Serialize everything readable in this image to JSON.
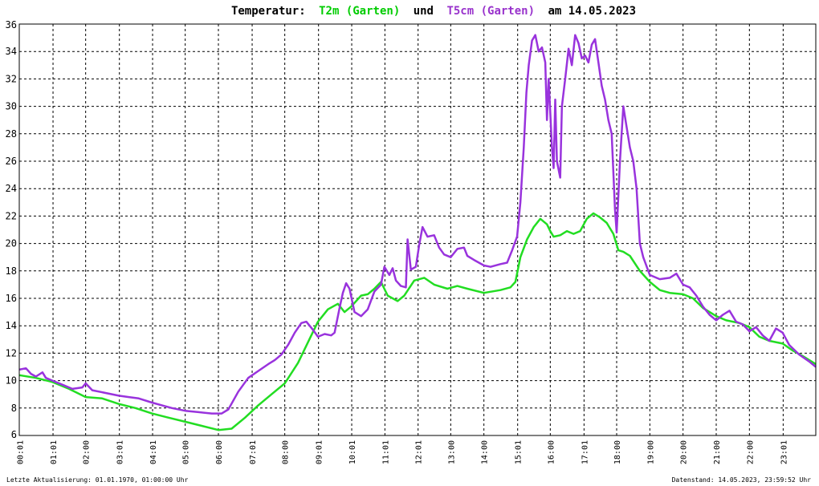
{
  "title": {
    "prefix": "Temperatur:",
    "series1": "T2m (Garten)",
    "connector": "und",
    "series2": "T5cm (Garten)",
    "suffix": "am 14.05.2023"
  },
  "footer": {
    "left": "Letzte Aktualisierung: 01.01.1970, 01:00:00 Uhr",
    "right": "Datenstand: 14.05.2023, 23:59:52 Uhr"
  },
  "colors": {
    "t2m": "#22dd22",
    "t5cm": "#9933dd",
    "grid": "#000000",
    "title_t2m": "#00cc00",
    "title_t5cm": "#9933cc"
  },
  "chart_data": {
    "type": "line",
    "xlim": [
      0,
      24
    ],
    "ylim": [
      6,
      36
    ],
    "y_ticks": [
      6,
      8,
      10,
      12,
      14,
      16,
      18,
      20,
      22,
      24,
      26,
      28,
      30,
      32,
      34,
      36
    ],
    "x_ticks": [
      {
        "label": "00:01",
        "x": 0.017
      },
      {
        "label": "01:01",
        "x": 1.017
      },
      {
        "label": "02:00",
        "x": 2.0
      },
      {
        "label": "03:01",
        "x": 3.017
      },
      {
        "label": "04:01",
        "x": 4.017
      },
      {
        "label": "05:00",
        "x": 5.0
      },
      {
        "label": "06:00",
        "x": 6.0
      },
      {
        "label": "07:01",
        "x": 7.017
      },
      {
        "label": "08:00",
        "x": 8.0
      },
      {
        "label": "09:01",
        "x": 9.017
      },
      {
        "label": "10:01",
        "x": 10.017
      },
      {
        "label": "11:01",
        "x": 11.017
      },
      {
        "label": "12:01",
        "x": 12.017
      },
      {
        "label": "13:00",
        "x": 13.0
      },
      {
        "label": "14:00",
        "x": 14.0
      },
      {
        "label": "15:01",
        "x": 15.017
      },
      {
        "label": "16:00",
        "x": 16.0
      },
      {
        "label": "17:01",
        "x": 17.017
      },
      {
        "label": "18:00",
        "x": 18.0
      },
      {
        "label": "19:00",
        "x": 19.0
      },
      {
        "label": "20:00",
        "x": 20.0
      },
      {
        "label": "21:00",
        "x": 21.0
      },
      {
        "label": "22:00",
        "x": 22.0
      },
      {
        "label": "23:01",
        "x": 23.017
      }
    ],
    "grid": true,
    "series": [
      {
        "name": "T2m (Garten)",
        "color": "#22dd22",
        "points": [
          [
            0.0,
            10.4
          ],
          [
            0.5,
            10.2
          ],
          [
            1.0,
            9.9
          ],
          [
            1.5,
            9.4
          ],
          [
            2.0,
            8.8
          ],
          [
            2.5,
            8.7
          ],
          [
            3.0,
            8.3
          ],
          [
            3.5,
            8.0
          ],
          [
            4.0,
            7.6
          ],
          [
            4.5,
            7.3
          ],
          [
            5.0,
            7.0
          ],
          [
            5.5,
            6.7
          ],
          [
            6.0,
            6.4
          ],
          [
            6.4,
            6.5
          ],
          [
            6.8,
            7.3
          ],
          [
            7.2,
            8.2
          ],
          [
            7.6,
            9.0
          ],
          [
            8.0,
            9.8
          ],
          [
            8.4,
            11.3
          ],
          [
            8.7,
            12.8
          ],
          [
            9.0,
            14.3
          ],
          [
            9.3,
            15.2
          ],
          [
            9.6,
            15.6
          ],
          [
            9.8,
            15.0
          ],
          [
            10.0,
            15.4
          ],
          [
            10.3,
            16.2
          ],
          [
            10.5,
            16.3
          ],
          [
            10.7,
            16.7
          ],
          [
            10.9,
            17.2
          ],
          [
            11.1,
            16.2
          ],
          [
            11.4,
            15.8
          ],
          [
            11.6,
            16.2
          ],
          [
            11.9,
            17.3
          ],
          [
            12.2,
            17.5
          ],
          [
            12.5,
            17.0
          ],
          [
            12.9,
            16.7
          ],
          [
            13.2,
            16.9
          ],
          [
            13.5,
            16.7
          ],
          [
            14.0,
            16.4
          ],
          [
            14.5,
            16.6
          ],
          [
            14.8,
            16.8
          ],
          [
            14.95,
            17.2
          ],
          [
            15.1,
            19.0
          ],
          [
            15.3,
            20.3
          ],
          [
            15.5,
            21.2
          ],
          [
            15.7,
            21.8
          ],
          [
            15.9,
            21.4
          ],
          [
            16.0,
            20.9
          ],
          [
            16.1,
            20.5
          ],
          [
            16.3,
            20.6
          ],
          [
            16.5,
            20.9
          ],
          [
            16.7,
            20.7
          ],
          [
            16.9,
            20.9
          ],
          [
            17.1,
            21.8
          ],
          [
            17.3,
            22.2
          ],
          [
            17.5,
            21.9
          ],
          [
            17.7,
            21.5
          ],
          [
            17.9,
            20.7
          ],
          [
            18.05,
            19.5
          ],
          [
            18.2,
            19.4
          ],
          [
            18.4,
            19.1
          ],
          [
            18.7,
            18.0
          ],
          [
            19.0,
            17.2
          ],
          [
            19.3,
            16.6
          ],
          [
            19.6,
            16.4
          ],
          [
            20.0,
            16.3
          ],
          [
            20.3,
            16.0
          ],
          [
            20.6,
            15.3
          ],
          [
            21.0,
            14.7
          ],
          [
            21.3,
            14.4
          ],
          [
            21.7,
            14.2
          ],
          [
            22.0,
            13.9
          ],
          [
            22.3,
            13.2
          ],
          [
            22.6,
            12.9
          ],
          [
            23.0,
            12.7
          ],
          [
            23.3,
            12.2
          ],
          [
            23.6,
            11.8
          ],
          [
            24.0,
            11.2
          ]
        ]
      },
      {
        "name": "T5cm (Garten)",
        "color": "#9933dd",
        "points": [
          [
            0.0,
            10.8
          ],
          [
            0.2,
            10.9
          ],
          [
            0.35,
            10.5
          ],
          [
            0.5,
            10.3
          ],
          [
            0.7,
            10.6
          ],
          [
            0.8,
            10.2
          ],
          [
            1.0,
            10.0
          ],
          [
            1.3,
            9.7
          ],
          [
            1.6,
            9.4
          ],
          [
            1.9,
            9.5
          ],
          [
            2.0,
            9.8
          ],
          [
            2.2,
            9.3
          ],
          [
            2.6,
            9.1
          ],
          [
            3.0,
            8.9
          ],
          [
            3.3,
            8.8
          ],
          [
            3.6,
            8.7
          ],
          [
            4.0,
            8.4
          ],
          [
            4.3,
            8.2
          ],
          [
            4.6,
            8.0
          ],
          [
            5.0,
            7.8
          ],
          [
            5.4,
            7.7
          ],
          [
            5.8,
            7.6
          ],
          [
            6.1,
            7.6
          ],
          [
            6.3,
            7.9
          ],
          [
            6.6,
            9.2
          ],
          [
            6.9,
            10.2
          ],
          [
            7.2,
            10.7
          ],
          [
            7.5,
            11.2
          ],
          [
            7.7,
            11.5
          ],
          [
            7.9,
            11.9
          ],
          [
            8.1,
            12.6
          ],
          [
            8.3,
            13.5
          ],
          [
            8.5,
            14.2
          ],
          [
            8.65,
            14.3
          ],
          [
            8.85,
            13.7
          ],
          [
            9.0,
            13.2
          ],
          [
            9.2,
            13.4
          ],
          [
            9.4,
            13.3
          ],
          [
            9.5,
            13.5
          ],
          [
            9.65,
            15.3
          ],
          [
            9.75,
            16.4
          ],
          [
            9.85,
            17.1
          ],
          [
            9.95,
            16.7
          ],
          [
            10.1,
            15.0
          ],
          [
            10.3,
            14.7
          ],
          [
            10.5,
            15.2
          ],
          [
            10.7,
            16.5
          ],
          [
            10.9,
            17.0
          ],
          [
            11.0,
            18.3
          ],
          [
            11.15,
            17.7
          ],
          [
            11.25,
            18.2
          ],
          [
            11.35,
            17.3
          ],
          [
            11.5,
            16.9
          ],
          [
            11.65,
            16.8
          ],
          [
            11.7,
            20.3
          ],
          [
            11.8,
            18.1
          ],
          [
            11.95,
            18.3
          ],
          [
            12.05,
            19.9
          ],
          [
            12.15,
            21.2
          ],
          [
            12.3,
            20.5
          ],
          [
            12.5,
            20.6
          ],
          [
            12.65,
            19.7
          ],
          [
            12.8,
            19.2
          ],
          [
            13.0,
            19.0
          ],
          [
            13.2,
            19.6
          ],
          [
            13.4,
            19.7
          ],
          [
            13.5,
            19.1
          ],
          [
            13.7,
            18.8
          ],
          [
            14.0,
            18.4
          ],
          [
            14.2,
            18.3
          ],
          [
            14.5,
            18.5
          ],
          [
            14.7,
            18.6
          ],
          [
            14.85,
            19.5
          ],
          [
            15.0,
            20.5
          ],
          [
            15.1,
            23.0
          ],
          [
            15.2,
            27.0
          ],
          [
            15.28,
            31.0
          ],
          [
            15.35,
            33.0
          ],
          [
            15.45,
            34.8
          ],
          [
            15.55,
            35.2
          ],
          [
            15.65,
            34.0
          ],
          [
            15.75,
            34.3
          ],
          [
            15.85,
            33.2
          ],
          [
            15.9,
            29.0
          ],
          [
            15.95,
            32.0
          ],
          [
            16.05,
            27.0
          ],
          [
            16.1,
            25.5
          ],
          [
            16.15,
            30.5
          ],
          [
            16.2,
            26.0
          ],
          [
            16.3,
            24.8
          ],
          [
            16.35,
            30.0
          ],
          [
            16.45,
            32.0
          ],
          [
            16.55,
            34.2
          ],
          [
            16.65,
            33.0
          ],
          [
            16.75,
            35.2
          ],
          [
            16.85,
            34.6
          ],
          [
            16.95,
            33.5
          ],
          [
            17.05,
            33.7
          ],
          [
            17.15,
            33.2
          ],
          [
            17.25,
            34.5
          ],
          [
            17.35,
            34.9
          ],
          [
            17.45,
            33.2
          ],
          [
            17.55,
            31.5
          ],
          [
            17.65,
            30.5
          ],
          [
            17.75,
            29.0
          ],
          [
            17.85,
            28.0
          ],
          [
            17.95,
            22.5
          ],
          [
            18.0,
            20.8
          ],
          [
            18.1,
            26.0
          ],
          [
            18.2,
            30.0
          ],
          [
            18.3,
            28.5
          ],
          [
            18.4,
            27.0
          ],
          [
            18.5,
            26.0
          ],
          [
            18.6,
            24.0
          ],
          [
            18.7,
            20.0
          ],
          [
            18.8,
            19.0
          ],
          [
            19.0,
            17.7
          ],
          [
            19.3,
            17.4
          ],
          [
            19.6,
            17.5
          ],
          [
            19.8,
            17.8
          ],
          [
            20.0,
            17.0
          ],
          [
            20.2,
            16.8
          ],
          [
            20.4,
            16.2
          ],
          [
            20.6,
            15.4
          ],
          [
            20.8,
            14.8
          ],
          [
            21.0,
            14.4
          ],
          [
            21.2,
            14.8
          ],
          [
            21.4,
            15.1
          ],
          [
            21.6,
            14.3
          ],
          [
            21.8,
            14.1
          ],
          [
            22.0,
            13.6
          ],
          [
            22.2,
            13.9
          ],
          [
            22.4,
            13.3
          ],
          [
            22.6,
            12.9
          ],
          [
            22.8,
            13.8
          ],
          [
            23.0,
            13.5
          ],
          [
            23.2,
            12.6
          ],
          [
            23.5,
            11.9
          ],
          [
            23.8,
            11.4
          ],
          [
            24.0,
            11.0
          ]
        ]
      }
    ]
  }
}
